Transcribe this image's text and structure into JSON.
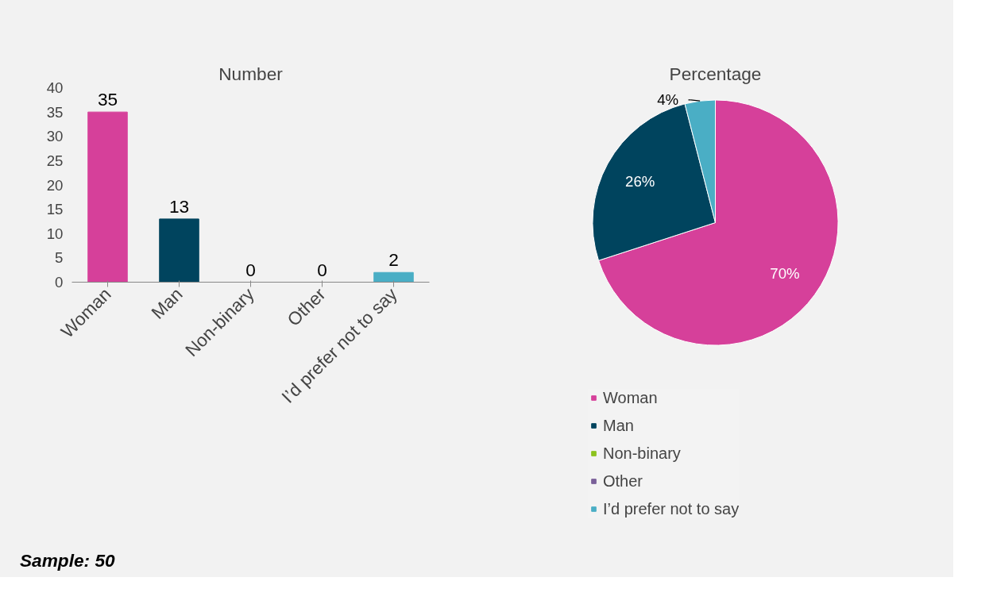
{
  "chart_data": [
    {
      "type": "bar",
      "title": "Number",
      "categories": [
        "Woman",
        "Man",
        "Non-binary",
        "Other",
        "I’d prefer not to say"
      ],
      "values": [
        35,
        13,
        0,
        0,
        2
      ],
      "colors": [
        "#d6409a",
        "#00445e",
        "#8cc21e",
        "#7a5f99",
        "#4aaec5"
      ],
      "ylim": [
        0,
        40
      ],
      "yticks": [
        0,
        5,
        10,
        15,
        20,
        25,
        30,
        35,
        40
      ],
      "data_labels": true,
      "grid": false,
      "annotations": [
        "Sample: 50"
      ]
    },
    {
      "type": "pie",
      "title": "Percentage",
      "categories": [
        "Woman",
        "Man",
        "Non-binary",
        "Other",
        "I’d prefer not to say"
      ],
      "values": [
        70,
        26,
        0,
        0,
        4
      ],
      "colors": [
        "#d6409a",
        "#00445e",
        "#8cc21e",
        "#7a5f99",
        "#4aaec5"
      ],
      "value_labels": [
        "70%",
        "26%",
        null,
        null,
        "4%"
      ],
      "legend": "bottom"
    }
  ]
}
